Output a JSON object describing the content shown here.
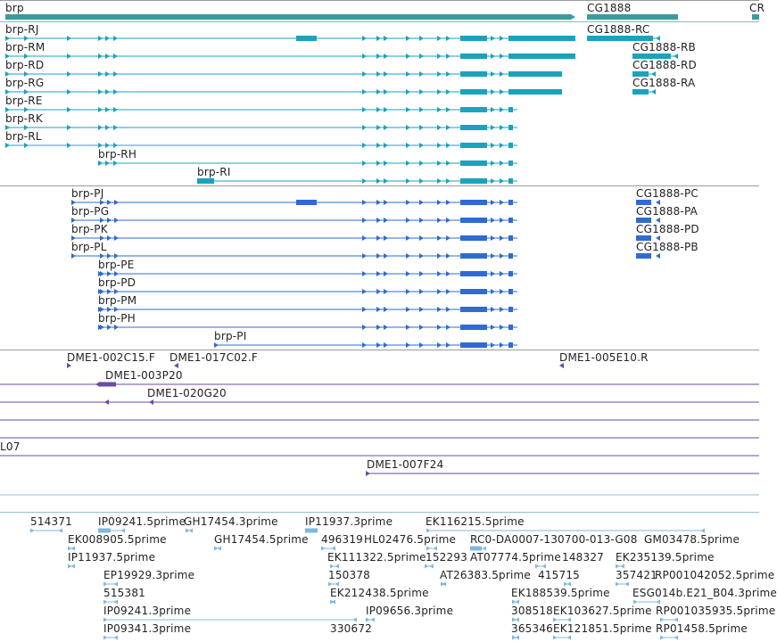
{
  "colors": {
    "gene": "#3a9b9e",
    "transcript": "#1aa3bd",
    "protein": "#2f6bd1",
    "clone": "#6a4aa5",
    "est": "#7fb8df",
    "separator": "#9a9a9a"
  },
  "genes": [
    {
      "label": "brp"
    },
    {
      "label": "CG1888"
    },
    {
      "label": "CR"
    }
  ],
  "transcripts": [
    {
      "label": "brp-RJ"
    },
    {
      "label": "brp-RM"
    },
    {
      "label": "brp-RD"
    },
    {
      "label": "brp-RG"
    },
    {
      "label": "brp-RE"
    },
    {
      "label": "brp-RK"
    },
    {
      "label": "brp-RL"
    },
    {
      "label": "brp-RH"
    },
    {
      "label": "brp-RI"
    },
    {
      "label": "CG1888-RC"
    },
    {
      "label": "CG1888-RB"
    },
    {
      "label": "CG1888-RD"
    },
    {
      "label": "CG1888-RA"
    }
  ],
  "proteins": [
    {
      "label": "brp-PJ"
    },
    {
      "label": "brp-PG"
    },
    {
      "label": "brp-PK"
    },
    {
      "label": "brp-PL"
    },
    {
      "label": "brp-PE"
    },
    {
      "label": "brp-PD"
    },
    {
      "label": "brp-PM"
    },
    {
      "label": "brp-PH"
    },
    {
      "label": "brp-PI"
    },
    {
      "label": "CG1888-PC"
    },
    {
      "label": "CG1888-PA"
    },
    {
      "label": "CG1888-PD"
    },
    {
      "label": "CG1888-PB"
    }
  ],
  "clones": [
    {
      "label": "DME1-002C15.F"
    },
    {
      "label": "DME1-017C02.F"
    },
    {
      "label": "DME1-005E10.R"
    },
    {
      "label": "DME1-003P20"
    },
    {
      "label": "DME1-020G20"
    },
    {
      "label": "L07"
    },
    {
      "label": "DME1-007F24"
    }
  ],
  "ests": [
    {
      "label": "514371"
    },
    {
      "label": "IP09241.5prime"
    },
    {
      "label": "GH17454.3prime"
    },
    {
      "label": "IP11937.3prime"
    },
    {
      "label": "EK116215.5prime"
    },
    {
      "label": "EK008905.5prime"
    },
    {
      "label": "GH17454.5prime"
    },
    {
      "label": "496319"
    },
    {
      "label": "HL02476.5prime"
    },
    {
      "label": "RC0-DA0007-130700-013-G08"
    },
    {
      "label": "GM03478.5prime"
    },
    {
      "label": "IP11937.5prime"
    },
    {
      "label": "EK111322.5prime"
    },
    {
      "label": "152293"
    },
    {
      "label": "AT07774.5prime"
    },
    {
      "label": "148327"
    },
    {
      "label": "EK235139.5prime"
    },
    {
      "label": "EP19929.3prime"
    },
    {
      "label": "150378"
    },
    {
      "label": "AT26383.5prime"
    },
    {
      "label": "415715"
    },
    {
      "label": "357421"
    },
    {
      "label": "RP001042052.5prime"
    },
    {
      "label": "515381"
    },
    {
      "label": "EK212438.5prime"
    },
    {
      "label": "EK188539.5prime"
    },
    {
      "label": "ESG014b.E21_B04.3prime"
    },
    {
      "label": "IP09241.3prime"
    },
    {
      "label": "IP09656.3prime"
    },
    {
      "label": "308518"
    },
    {
      "label": "EK103627.5prime"
    },
    {
      "label": "RP001035935.5prime"
    },
    {
      "label": "IP09341.3prime"
    },
    {
      "label": "330672"
    },
    {
      "label": "365346"
    },
    {
      "label": "EK121851.5prime"
    },
    {
      "label": "RP01458.5prime"
    }
  ]
}
